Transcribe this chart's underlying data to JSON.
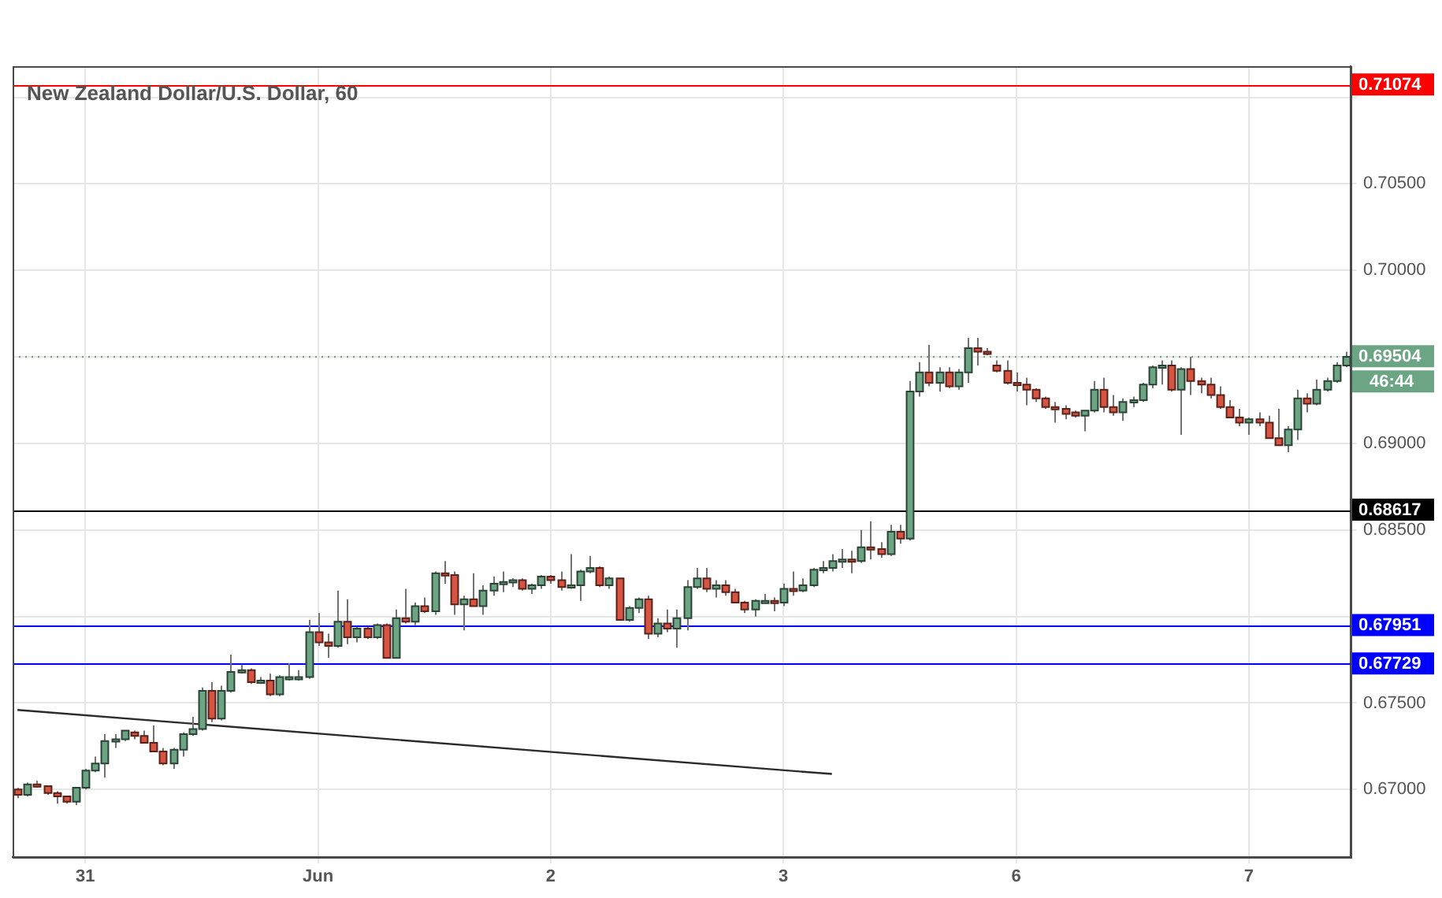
{
  "chart_data": {
    "type": "candlestick",
    "title": "New Zealand Dollar/U.S. Dollar, 60",
    "categories": [
      null,
      null,
      null,
      null,
      null,
      null,
      null,
      "31",
      null,
      null,
      null,
      null,
      null,
      null,
      null,
      null,
      null,
      null,
      null,
      null,
      null,
      null,
      null,
      null,
      null,
      null,
      null,
      null,
      null,
      null,
      null,
      "Jun",
      null,
      null,
      null,
      null,
      null,
      null,
      null,
      null,
      null,
      null,
      null,
      null,
      null,
      null,
      null,
      null,
      null,
      null,
      null,
      null,
      null,
      null,
      null,
      "2",
      null,
      null,
      null,
      null,
      null,
      null,
      null,
      null,
      null,
      null,
      null,
      null,
      null,
      null,
      null,
      null,
      null,
      null,
      null,
      null,
      null,
      null,
      null,
      "3",
      null,
      null,
      null,
      null,
      null,
      null,
      null,
      null,
      null,
      null,
      null,
      null,
      null,
      null,
      null,
      null,
      null,
      null,
      null,
      null,
      null,
      null,
      null,
      "6",
      null,
      null,
      null,
      null,
      null,
      null,
      null,
      null,
      null,
      null,
      null,
      null,
      null,
      null,
      null,
      null,
      null,
      null,
      null,
      null,
      null,
      null,
      null,
      "7",
      null,
      null,
      null,
      null,
      null,
      null,
      null,
      null,
      null,
      null
    ],
    "series": [
      {
        "ohlc": [
          [
            0.67,
            0.6701,
            0.6695,
            0.6697
          ],
          [
            0.6697,
            0.6704,
            0.6696,
            0.6703
          ],
          [
            0.6703,
            0.6705,
            0.6701,
            0.6702
          ],
          [
            0.6702,
            0.6702,
            0.6697,
            0.6698
          ],
          [
            0.6698,
            0.6699,
            0.6692,
            0.6696
          ],
          [
            0.6696,
            0.6696,
            0.6692,
            0.6693
          ],
          [
            0.6693,
            0.6701,
            0.6691,
            0.6701
          ],
          [
            0.6701,
            0.6712,
            0.67,
            0.6711
          ],
          [
            0.6711,
            0.6719,
            0.671,
            0.6715
          ],
          [
            0.6715,
            0.6732,
            0.6707,
            0.6728
          ],
          [
            0.6728,
            0.6732,
            0.6724,
            0.6729
          ],
          [
            0.6729,
            0.6734,
            0.6728,
            0.6734
          ],
          [
            0.6733,
            0.6734,
            0.6729,
            0.6731
          ],
          [
            0.6731,
            0.6734,
            0.6727,
            0.6727
          ],
          [
            0.6727,
            0.6737,
            0.6722,
            0.6722
          ],
          [
            0.6722,
            0.6724,
            0.6714,
            0.6715
          ],
          [
            0.6715,
            0.6724,
            0.6712,
            0.6723
          ],
          [
            0.6723,
            0.6733,
            0.6719,
            0.6732
          ],
          [
            0.6732,
            0.6742,
            0.6731,
            0.6735
          ],
          [
            0.6735,
            0.6759,
            0.6734,
            0.6757
          ],
          [
            0.6757,
            0.6762,
            0.6739,
            0.6741
          ],
          [
            0.6741,
            0.676,
            0.674,
            0.6757
          ],
          [
            0.6757,
            0.6778,
            0.6756,
            0.6768
          ],
          [
            0.6768,
            0.6772,
            0.6767,
            0.6769
          ],
          [
            0.6769,
            0.677,
            0.6761,
            0.6762
          ],
          [
            0.6762,
            0.6765,
            0.6761,
            0.6763
          ],
          [
            0.6763,
            0.6767,
            0.6754,
            0.6755
          ],
          [
            0.6755,
            0.6766,
            0.6754,
            0.6765
          ],
          [
            0.6765,
            0.6773,
            0.6763,
            0.6765
          ],
          [
            0.6764,
            0.6769,
            0.6763,
            0.6765
          ],
          [
            0.6765,
            0.6798,
            0.6764,
            0.6791
          ],
          [
            0.6791,
            0.6802,
            0.6783,
            0.6785
          ],
          [
            0.6785,
            0.679,
            0.6776,
            0.6783
          ],
          [
            0.6783,
            0.6815,
            0.6782,
            0.6797
          ],
          [
            0.6797,
            0.681,
            0.6784,
            0.6788
          ],
          [
            0.6788,
            0.6794,
            0.6785,
            0.6793
          ],
          [
            0.6793,
            0.6794,
            0.6787,
            0.6788
          ],
          [
            0.6788,
            0.6796,
            0.6787,
            0.6795
          ],
          [
            0.6795,
            0.6796,
            0.6776,
            0.6776
          ],
          [
            0.6776,
            0.6804,
            0.6776,
            0.6799
          ],
          [
            0.6799,
            0.6816,
            0.6796,
            0.6797
          ],
          [
            0.6797,
            0.6808,
            0.6795,
            0.6806
          ],
          [
            0.6806,
            0.6811,
            0.6802,
            0.6803
          ],
          [
            0.6803,
            0.6826,
            0.6801,
            0.6825
          ],
          [
            0.6825,
            0.6832,
            0.6819,
            0.6824
          ],
          [
            0.6824,
            0.6826,
            0.6801,
            0.6807
          ],
          [
            0.6807,
            0.6812,
            0.6792,
            0.681
          ],
          [
            0.681,
            0.6825,
            0.6806,
            0.6806
          ],
          [
            0.6806,
            0.6818,
            0.6801,
            0.6815
          ],
          [
            0.6815,
            0.6823,
            0.6812,
            0.6819
          ],
          [
            0.6819,
            0.6826,
            0.6814,
            0.682
          ],
          [
            0.682,
            0.6822,
            0.6817,
            0.6821
          ],
          [
            0.6821,
            0.6822,
            0.6815,
            0.6816
          ],
          [
            0.6816,
            0.6819,
            0.6813,
            0.6818
          ],
          [
            0.6818,
            0.6824,
            0.6816,
            0.6823
          ],
          [
            0.6823,
            0.6824,
            0.6819,
            0.6821
          ],
          [
            0.6821,
            0.6826,
            0.6815,
            0.6817
          ],
          [
            0.6817,
            0.6836,
            0.6816,
            0.6818
          ],
          [
            0.6818,
            0.6827,
            0.6809,
            0.6826
          ],
          [
            0.6826,
            0.6835,
            0.6825,
            0.6828
          ],
          [
            0.6828,
            0.6829,
            0.6817,
            0.6818
          ],
          [
            0.6818,
            0.6823,
            0.6816,
            0.6822
          ],
          [
            0.6822,
            0.6822,
            0.6798,
            0.6798
          ],
          [
            0.6798,
            0.6806,
            0.6797,
            0.6805
          ],
          [
            0.6805,
            0.6811,
            0.6802,
            0.681
          ],
          [
            0.681,
            0.6812,
            0.6787,
            0.679
          ],
          [
            0.679,
            0.6799,
            0.6788,
            0.6796
          ],
          [
            0.6796,
            0.6804,
            0.6791,
            0.6793
          ],
          [
            0.6793,
            0.6804,
            0.6782,
            0.6799
          ],
          [
            0.6799,
            0.6821,
            0.6792,
            0.6817
          ],
          [
            0.6817,
            0.6828,
            0.6816,
            0.6822
          ],
          [
            0.6822,
            0.6828,
            0.6814,
            0.6816
          ],
          [
            0.6816,
            0.6821,
            0.6811,
            0.6818
          ],
          [
            0.6818,
            0.6821,
            0.6812,
            0.6814
          ],
          [
            0.6814,
            0.6816,
            0.6808,
            0.6808
          ],
          [
            0.6808,
            0.6809,
            0.6802,
            0.6804
          ],
          [
            0.6804,
            0.681,
            0.68,
            0.6809
          ],
          [
            0.6809,
            0.6813,
            0.6808,
            0.6809
          ],
          [
            0.6809,
            0.6811,
            0.6803,
            0.6808
          ],
          [
            0.6808,
            0.6819,
            0.6806,
            0.6816
          ],
          [
            0.6816,
            0.6826,
            0.6812,
            0.6815
          ],
          [
            0.6815,
            0.6822,
            0.6814,
            0.6818
          ],
          [
            0.6818,
            0.6828,
            0.6817,
            0.6827
          ],
          [
            0.6827,
            0.6832,
            0.6825,
            0.6828
          ],
          [
            0.6828,
            0.6836,
            0.6826,
            0.6832
          ],
          [
            0.6832,
            0.6839,
            0.6828,
            0.6833
          ],
          [
            0.6833,
            0.6838,
            0.6825,
            0.6832
          ],
          [
            0.6832,
            0.685,
            0.6831,
            0.684
          ],
          [
            0.684,
            0.6855,
            0.6833,
            0.6839
          ],
          [
            0.6839,
            0.6843,
            0.6834,
            0.6836
          ],
          [
            0.6836,
            0.6853,
            0.6835,
            0.6849
          ],
          [
            0.6849,
            0.6853,
            0.6842,
            0.6845
          ],
          [
            0.6845,
            0.6936,
            0.6844,
            0.693
          ],
          [
            0.693,
            0.6947,
            0.6927,
            0.6941
          ],
          [
            0.6941,
            0.6957,
            0.6933,
            0.6935
          ],
          [
            0.6935,
            0.6944,
            0.693,
            0.6941
          ],
          [
            0.6941,
            0.6944,
            0.6932,
            0.6933
          ],
          [
            0.6933,
            0.6943,
            0.6931,
            0.6941
          ],
          [
            0.6941,
            0.6961,
            0.6935,
            0.6955
          ],
          [
            0.6955,
            0.6961,
            0.6945,
            0.6953
          ],
          [
            0.6953,
            0.6955,
            0.6951,
            0.6952
          ],
          [
            0.6945,
            0.6948,
            0.6941,
            0.6942
          ],
          [
            0.6942,
            0.6948,
            0.6934,
            0.6935
          ],
          [
            0.6935,
            0.6941,
            0.693,
            0.6934
          ],
          [
            0.6934,
            0.6938,
            0.6922,
            0.6931
          ],
          [
            0.6931,
            0.6932,
            0.6924,
            0.6926
          ],
          [
            0.6926,
            0.6927,
            0.692,
            0.6921
          ],
          [
            0.6921,
            0.6924,
            0.6912,
            0.692
          ],
          [
            0.692,
            0.6922,
            0.6914,
            0.6917
          ],
          [
            0.6918,
            0.6919,
            0.6915,
            0.6916
          ],
          [
            0.6916,
            0.6919,
            0.6907,
            0.6919
          ],
          [
            0.6919,
            0.6936,
            0.6918,
            0.6931
          ],
          [
            0.6931,
            0.6938,
            0.6918,
            0.6921
          ],
          [
            0.6921,
            0.6928,
            0.6916,
            0.6918
          ],
          [
            0.6918,
            0.6926,
            0.6913,
            0.6924
          ],
          [
            0.6924,
            0.6927,
            0.6921,
            0.6925
          ],
          [
            0.6925,
            0.6935,
            0.6924,
            0.6934
          ],
          [
            0.6934,
            0.6945,
            0.6932,
            0.6944
          ],
          [
            0.6944,
            0.6948,
            0.6934,
            0.6945
          ],
          [
            0.6945,
            0.6948,
            0.693,
            0.6931
          ],
          [
            0.6931,
            0.6944,
            0.6905,
            0.6943
          ],
          [
            0.6943,
            0.695,
            0.6928,
            0.6936
          ],
          [
            0.6936,
            0.6938,
            0.6929,
            0.6934
          ],
          [
            0.6934,
            0.6938,
            0.6926,
            0.6928
          ],
          [
            0.6928,
            0.6933,
            0.692,
            0.6921
          ],
          [
            0.6921,
            0.6925,
            0.6915,
            0.6915
          ],
          [
            0.6915,
            0.692,
            0.691,
            0.6912
          ],
          [
            0.6912,
            0.6915,
            0.6905,
            0.6914
          ],
          [
            0.6914,
            0.6918,
            0.691,
            0.6912
          ],
          [
            0.6912,
            0.6916,
            0.6903,
            0.6903
          ],
          [
            0.6903,
            0.692,
            0.6899,
            0.6899
          ],
          [
            0.6899,
            0.691,
            0.6895,
            0.6908
          ],
          [
            0.6908,
            0.6931,
            0.6902,
            0.6926
          ],
          [
            0.6926,
            0.6929,
            0.6918,
            0.6923
          ],
          [
            0.6923,
            0.6937,
            0.6922,
            0.6931
          ],
          [
            0.6931,
            0.6938,
            0.693,
            0.6936
          ],
          [
            0.6936,
            0.6947,
            0.6935,
            0.6945
          ],
          [
            0.6945,
            0.6953,
            0.6944,
            0.695
          ]
        ],
        "colors": [
          "#d75442",
          "#6ba583",
          "#d75442",
          "#d75442",
          "#d75442",
          "#d75442",
          "#6ba583",
          "#6ba583",
          "#6ba583",
          "#6ba583",
          "#6ba583",
          "#6ba583",
          "#d75442",
          "#d75442",
          "#d75442",
          "#d75442",
          "#6ba583",
          "#6ba583",
          "#6ba583",
          "#6ba583",
          "#d75442",
          "#6ba583",
          "#6ba583",
          "#6ba583",
          "#d75442",
          "#6ba583",
          "#d75442",
          "#6ba583",
          "#6ba583",
          "#6ba583",
          "#6ba583",
          "#d75442",
          "#d75442",
          "#6ba583",
          "#d75442",
          "#6ba583",
          "#d75442",
          "#6ba583",
          "#d75442",
          "#6ba583",
          "#d75442",
          "#6ba583",
          "#d75442",
          "#6ba583",
          "#d75442",
          "#d75442",
          "#6ba583",
          "#d75442",
          "#6ba583",
          "#6ba583",
          "#6ba583",
          "#6ba583",
          "#d75442",
          "#6ba583",
          "#6ba583",
          "#d75442",
          "#d75442",
          "#6ba583",
          "#6ba583",
          "#6ba583",
          "#d75442",
          "#6ba583",
          "#d75442",
          "#6ba583",
          "#6ba583",
          "#d75442",
          "#6ba583",
          "#d75442",
          "#6ba583",
          "#6ba583",
          "#6ba583",
          "#d75442",
          "#6ba583",
          "#d75442",
          "#d75442",
          "#d75442",
          "#6ba583",
          "#6ba583",
          "#d75442",
          "#6ba583",
          "#d75442",
          "#6ba583",
          "#6ba583",
          "#6ba583",
          "#6ba583",
          "#6ba583",
          "#d75442",
          "#6ba583",
          "#d75442",
          "#d75442",
          "#6ba583",
          "#d75442",
          "#6ba583",
          "#6ba583",
          "#d75442",
          "#6ba583",
          "#d75442",
          "#6ba583",
          "#6ba583",
          "#d75442",
          "#d75442",
          "#d75442",
          "#d75442",
          "#d75442",
          "#d75442",
          "#d75442",
          "#d75442",
          "#d75442",
          "#d75442",
          "#d75442",
          "#6ba583",
          "#6ba583",
          "#d75442",
          "#d75442",
          "#6ba583",
          "#6ba583",
          "#6ba583",
          "#6ba583",
          "#6ba583",
          "#d75442",
          "#6ba583",
          "#d75442",
          "#d75442",
          "#d75442",
          "#d75442",
          "#d75442",
          "#d75442",
          "#6ba583",
          "#d75442",
          "#d75442",
          "#d75442",
          "#6ba583",
          "#6ba583",
          "#d75442",
          "#6ba583",
          "#6ba583",
          "#6ba583",
          "#6ba583"
        ]
      },
      {
        "type": "line",
        "color": "#2b2b2b",
        "values": [
          0.6746,
          null,
          null,
          null,
          null,
          null,
          null,
          null,
          null,
          null,
          null,
          null,
          null,
          null,
          null,
          null,
          null,
          null,
          null,
          null,
          null,
          null,
          null,
          null,
          null,
          null,
          null,
          null,
          null,
          null,
          null,
          null,
          null,
          null,
          null,
          null,
          null,
          null,
          null,
          null,
          null,
          null,
          null,
          null,
          null,
          null,
          null,
          null,
          null,
          null,
          null,
          null,
          null,
          null,
          null,
          null,
          null,
          null,
          null,
          null,
          null,
          null,
          null,
          null,
          null,
          null,
          null,
          null,
          null,
          null,
          null,
          null,
          null,
          null,
          null,
          null,
          null,
          null,
          null,
          null,
          null,
          null,
          null,
          null,
          0.6709,
          null,
          null,
          null,
          null,
          null,
          null,
          null,
          null,
          null,
          null,
          null,
          null,
          null,
          null,
          null,
          null,
          null,
          null,
          null,
          null,
          null,
          null,
          null,
          null,
          null,
          null,
          null,
          null,
          null,
          null,
          null,
          null,
          null,
          null,
          null,
          null,
          null,
          null,
          null,
          null,
          null,
          null,
          null,
          null,
          null,
          null,
          null,
          null,
          null,
          null,
          null,
          null,
          null
        ]
      }
    ],
    "ylim": [
      0.6661,
      0.7118
    ],
    "yticks": [
      {
        "value": 0.67,
        "label": "0.67000"
      },
      {
        "value": 0.675,
        "label": "0.67500"
      },
      {
        "value": 0.68,
        "label": null
      },
      {
        "value": 0.685,
        "label": "0.68500"
      },
      {
        "value": 0.69,
        "label": "0.69000"
      },
      {
        "value": 0.695,
        "label": null
      },
      {
        "value": 0.7,
        "label": "0.70000"
      },
      {
        "value": 0.705,
        "label": "0.70500"
      },
      {
        "value": 0.71,
        "label": null
      }
    ],
    "ref_lines": [
      {
        "axis": "y",
        "value": 0.71074,
        "label": "0.71074",
        "color": "#ff0000"
      },
      {
        "axis": "y",
        "value": 0.68617,
        "label": "0.68617",
        "color": "#000000"
      },
      {
        "axis": "y",
        "value": 0.67951,
        "label": "0.67951",
        "color": "#0000ff"
      },
      {
        "axis": "y",
        "value": 0.67729,
        "label": "0.67729",
        "color": "#0000ff"
      },
      {
        "axis": "y",
        "value": 0.69504,
        "label": "0.69504",
        "color": "#6ba583",
        "line_style": "dotted"
      }
    ],
    "annotations": [
      "46:44"
    ],
    "grid": true,
    "legend": false
  }
}
